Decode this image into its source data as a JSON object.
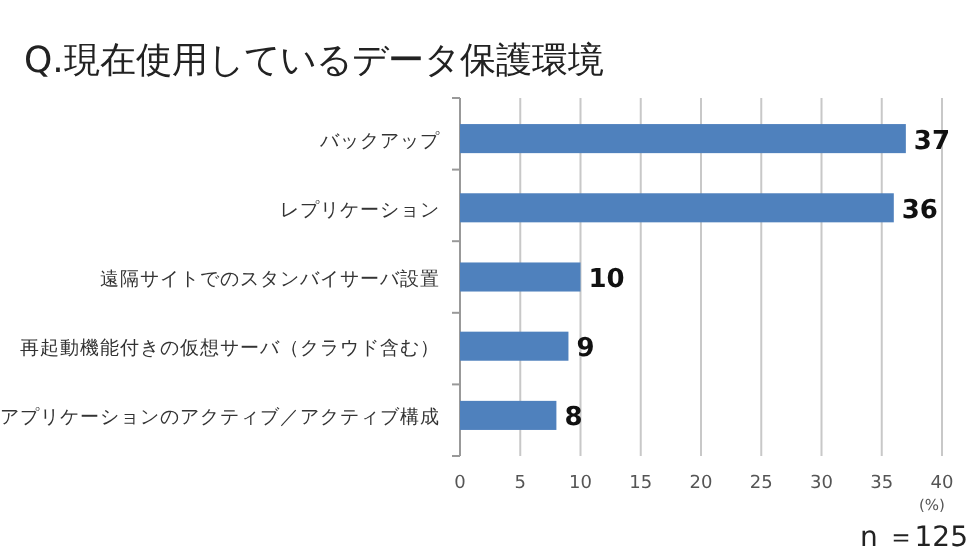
{
  "chart_data": {
    "type": "bar",
    "orientation": "horizontal",
    "title": "Q.現在使用しているデータ保護環境",
    "xlabel": "(%)",
    "categories": [
      "バックアップ",
      "レプリケーション",
      "遠隔サイトでのスタンバイサーバ設置",
      "再起動機能付きの仮想サーバ（クラウド含む）",
      "アプリケーションのアクティブ／アクティブ構成"
    ],
    "values": [
      37,
      36,
      10,
      9,
      8
    ],
    "color": "#4f81bd",
    "xlim": [
      0,
      40
    ],
    "xticks": [
      0,
      5,
      10,
      15,
      20,
      25,
      30,
      35,
      40
    ],
    "grid": "x",
    "data_labels": true,
    "annotations": [
      "n ＝125"
    ]
  }
}
